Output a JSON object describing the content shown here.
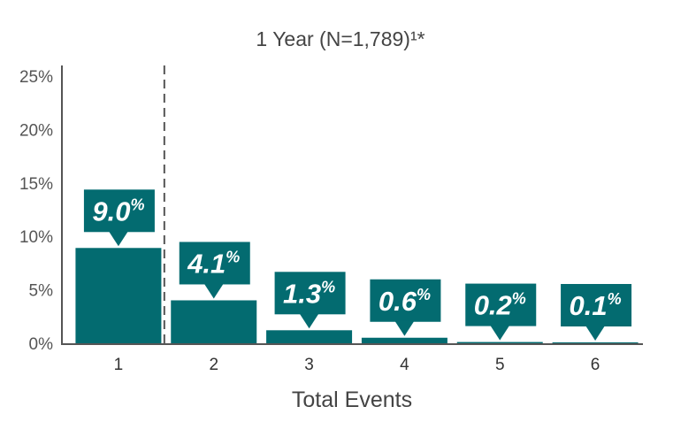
{
  "chart_data": {
    "type": "bar",
    "title": "1 Year (N=1,789)¹*",
    "xlabel": "Total Events",
    "ylabel": "",
    "categories": [
      "1",
      "2",
      "3",
      "4",
      "5",
      "6"
    ],
    "values": [
      9.0,
      4.1,
      1.3,
      0.6,
      0.2,
      0.1
    ],
    "data_labels": [
      {
        "number": "9.0",
        "unit": "%"
      },
      {
        "number": "4.1",
        "unit": "%"
      },
      {
        "number": "1.3",
        "unit": "%"
      },
      {
        "number": "0.6",
        "unit": "%"
      },
      {
        "number": "0.2",
        "unit": "%"
      },
      {
        "number": "0.1",
        "unit": "%"
      }
    ],
    "ylim": [
      0,
      25
    ],
    "yticks": [
      "0%",
      "5%",
      "10%",
      "15%",
      "20%",
      "25%"
    ],
    "grid": false,
    "legend": "none",
    "divider_after_category": "1",
    "colors": {
      "bar": "#036b70",
      "axis": "#555555",
      "text": "#444444"
    }
  }
}
